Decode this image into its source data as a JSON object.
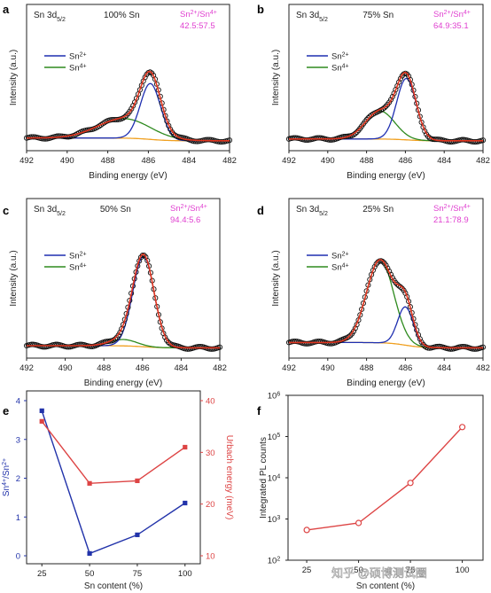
{
  "chart_data": [
    {
      "type": "line",
      "panel": "a",
      "label": "Sn 3d",
      "label_sub": "5/2",
      "sample": "100% Sn",
      "ratio_label": "Sn",
      "ratio_label_sup1": "2+",
      "ratio_label_sup2": "4+",
      "ratio_label_sep": "/Sn",
      "ratio": "42.5:57.5",
      "legend": [
        {
          "name": "Sn",
          "sup": "2+"
        },
        {
          "name": "Sn",
          "sup": "4+"
        }
      ],
      "xlabel": "Binding energy (eV)",
      "ylabel": "Intensity (a.u.)",
      "xlim": [
        492,
        482
      ],
      "xticks": [
        "492",
        "490",
        "488",
        "486",
        "484",
        "482"
      ],
      "peaks": {
        "sn2_center": 485.9,
        "sn2_amp": 0.6,
        "sn2_width": 0.5,
        "sn4_center": 487.2,
        "sn4_amp": 0.21,
        "sn4_width": 1.3,
        "bg_low": 0.03,
        "bg_high": 0.06
      }
    },
    {
      "type": "line",
      "panel": "b",
      "label": "Sn 3d",
      "label_sub": "5/2",
      "sample": "75% Sn",
      "ratio_label": "Sn",
      "ratio_label_sup1": "2+",
      "ratio_label_sup2": "4+",
      "ratio_label_sep": "/Sn",
      "ratio": "64.9:35.1",
      "legend": [
        {
          "name": "Sn",
          "sup": "2+"
        },
        {
          "name": "Sn",
          "sup": "4+"
        }
      ],
      "xlabel": "Binding energy (eV)",
      "ylabel": "Intensity (a.u.)",
      "xlim": [
        492,
        482
      ],
      "xticks": [
        "492",
        "490",
        "488",
        "486",
        "484",
        "482"
      ],
      "peaks": {
        "sn2_center": 485.95,
        "sn2_amp": 0.66,
        "sn2_width": 0.5,
        "sn4_center": 487.3,
        "sn4_amp": 0.3,
        "sn4_width": 0.75,
        "bg_low": 0.03,
        "bg_high": 0.05
      }
    },
    {
      "type": "line",
      "panel": "c",
      "label": "Sn 3d",
      "label_sub": "5/2",
      "sample": "50% Sn",
      "ratio_label": "Sn",
      "ratio_label_sup1": "2+",
      "ratio_label_sup2": "4+",
      "ratio_label_sep": "/Sn",
      "ratio": "94.4:5.6",
      "legend": [
        {
          "name": "Sn",
          "sup": "2+"
        },
        {
          "name": "Sn",
          "sup": "4+"
        }
      ],
      "xlabel": "Binding energy (eV)",
      "ylabel": "Intensity (a.u.)",
      "xlim": [
        492,
        482
      ],
      "xticks": [
        "492",
        "490",
        "488",
        "486",
        "484",
        "482"
      ],
      "peaks": {
        "sn2_center": 485.95,
        "sn2_amp": 0.85,
        "sn2_width": 0.55,
        "sn4_center": 487.0,
        "sn4_amp": 0.06,
        "sn4_width": 0.7,
        "bg_low": 0.03,
        "bg_high": 0.05
      }
    },
    {
      "type": "line",
      "panel": "d",
      "label": "Sn 3d",
      "label_sub": "5/2",
      "sample": "25% Sn",
      "ratio_label": "Sn",
      "ratio_label_sup1": "2+",
      "ratio_label_sup2": "4+",
      "ratio_label_sep": "/Sn",
      "ratio": "21.1:78.9",
      "legend": [
        {
          "name": "Sn",
          "sup": "2+"
        },
        {
          "name": "Sn",
          "sup": "4+"
        }
      ],
      "xlabel": "Binding energy (eV)",
      "ylabel": "Intensity (a.u.)",
      "xlim": [
        492,
        482
      ],
      "xticks": [
        "492",
        "490",
        "488",
        "486",
        "484",
        "482"
      ],
      "peaks": {
        "sn2_center": 486.0,
        "sn2_amp": 0.36,
        "sn2_width": 0.4,
        "sn4_center": 487.3,
        "sn4_amp": 0.78,
        "sn4_width": 0.7,
        "bg_low": 0.03,
        "bg_high": 0.08
      }
    },
    {
      "type": "line",
      "panel": "e",
      "xlabel": "Sn content (%)",
      "ylabel_left": "/Sn",
      "ylabel_left_pre": "Sn",
      "ylabel_left_sup1": "4+",
      "ylabel_left_sup2": "2+",
      "ylabel_right": "Urbach energy (meV)",
      "x": [
        25,
        50,
        75,
        100
      ],
      "xticks": [
        "25",
        "50",
        "75",
        "100"
      ],
      "ylim_left": [
        0,
        4
      ],
      "yticks_left": [
        "0",
        "1",
        "2",
        "3",
        "4"
      ],
      "ylim_right": [
        10,
        40
      ],
      "yticks_right": [
        "10",
        "20",
        "30",
        "40"
      ],
      "series": [
        {
          "values": [
            3.74,
            0.06,
            0.54,
            1.36
          ],
          "axis": "left",
          "color": "#2233aa"
        },
        {
          "values": [
            36,
            24,
            24.5,
            31
          ],
          "axis": "right",
          "color": "#dd4444"
        }
      ]
    },
    {
      "type": "line",
      "panel": "f",
      "xlabel": "Sn content (%)",
      "ylabel": "Integrated PL counts",
      "x": [
        25,
        50,
        75,
        100
      ],
      "xticks": [
        "25",
        "50",
        "75",
        "100"
      ],
      "ylog": true,
      "ylim": [
        100,
        1000000
      ],
      "yticks": [
        "10",
        "10",
        "10",
        "10",
        "10"
      ],
      "yticks_exp": [
        "2",
        "3",
        "4",
        "5",
        "6"
      ],
      "series": [
        {
          "values": [
            540,
            800,
            7500,
            170000
          ],
          "color": "#dd4444"
        }
      ]
    }
  ],
  "panel_letters": [
    "a",
    "b",
    "c",
    "d",
    "e",
    "f"
  ],
  "watermark": "知乎 @硕博测试圈",
  "colors": {
    "sn2": "#1f2fb0",
    "sn4": "#2e8a1e",
    "fit": "#e0351f",
    "bg": "#f0a020",
    "data": "#111111",
    "ratio": "#e040d0",
    "blue": "#2233aa",
    "red": "#dd4444"
  }
}
